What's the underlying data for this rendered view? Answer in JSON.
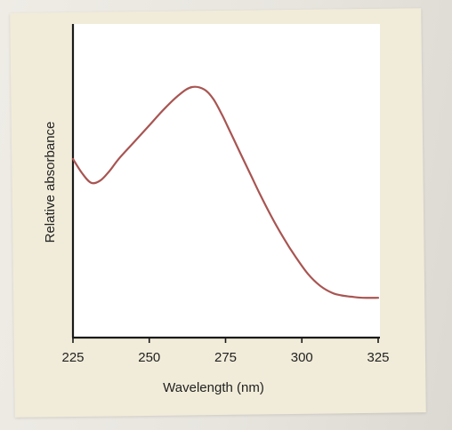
{
  "chart_data": {
    "type": "line",
    "title": "",
    "xlabel": "Wavelength (nm)",
    "ylabel": "Relative absorbance",
    "xlim": [
      225,
      325
    ],
    "x_ticks": [
      225,
      250,
      275,
      300,
      325
    ],
    "ylim": [
      0,
      1
    ],
    "grid": false,
    "legend": "none",
    "line_color": "#a85552",
    "series": [
      {
        "x": [
          225,
          228,
          231,
          234,
          237,
          240,
          245,
          250,
          255,
          260,
          264,
          268,
          271,
          274,
          277,
          280,
          283,
          286,
          290,
          294,
          298,
          302,
          306,
          310,
          313,
          316,
          320,
          325
        ],
        "y": [
          0.62,
          0.56,
          0.52,
          0.53,
          0.57,
          0.62,
          0.69,
          0.76,
          0.83,
          0.89,
          0.92,
          0.91,
          0.87,
          0.8,
          0.72,
          0.64,
          0.56,
          0.48,
          0.38,
          0.29,
          0.21,
          0.14,
          0.09,
          0.06,
          0.05,
          0.045,
          0.04,
          0.04
        ]
      }
    ]
  }
}
